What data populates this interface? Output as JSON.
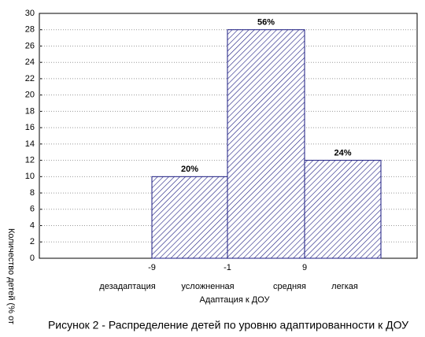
{
  "chart_data": {
    "type": "histogram",
    "caption": "Рисунок  2 - Распределение детей по уровню адаптированности к ДОУ",
    "x_label": "Адаптация к ДОУ",
    "y_label": "Количество детей (% от",
    "categories": [
      "дезадаптация",
      "усложненная",
      "средняя",
      "легкая"
    ],
    "xticks": [
      -9,
      -1,
      9
    ],
    "values": [
      10,
      28,
      12
    ],
    "value_labels": [
      "20%",
      "56%",
      "24%"
    ],
    "color": "#1a1a80",
    "ylim": [
      0,
      30
    ],
    "yticks": [
      0,
      2,
      4,
      6,
      8,
      10,
      12,
      14,
      16,
      18,
      20,
      22,
      24,
      26,
      28,
      30
    ],
    "grid": true
  }
}
